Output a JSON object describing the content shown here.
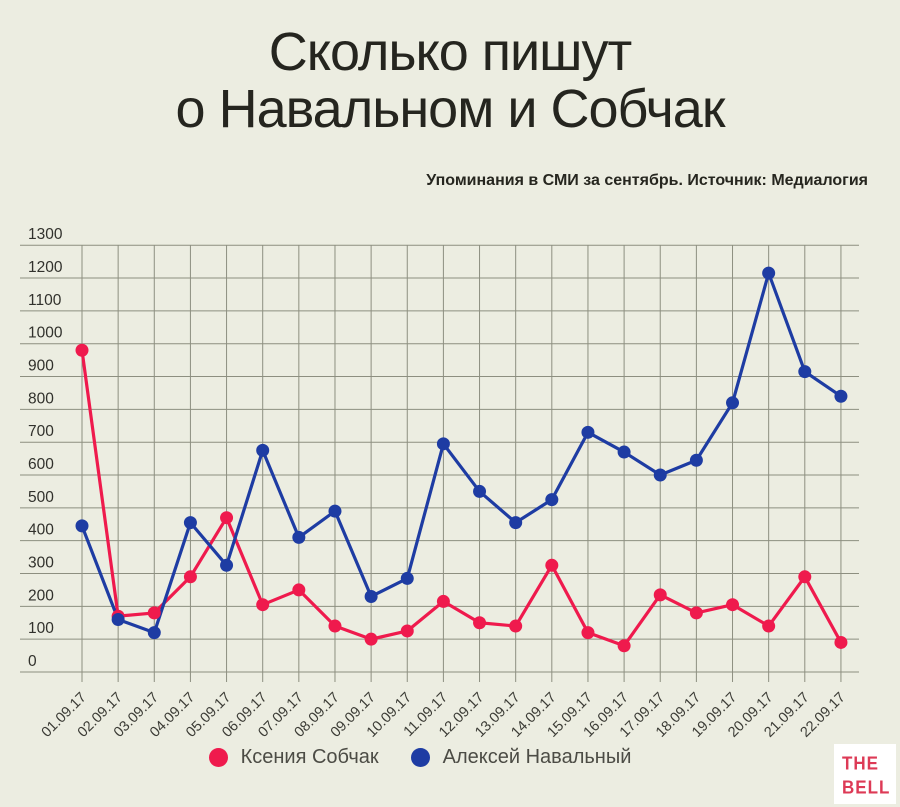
{
  "title": {
    "line1": "Сколько пишут",
    "line2": "о Навальном и Собчак"
  },
  "subtitle": "Упоминания в СМИ за сентябрь. Источник: Медиалогия",
  "logo": {
    "line1": "THE",
    "line2": "BELL",
    "color": "#dd3a56",
    "background": "#ffffff"
  },
  "colors": {
    "background": "#ecede1",
    "gridline": "#8d8f80",
    "y_axis_label": "#31312c",
    "x_axis_label": "#3b3b35",
    "title": "#25251f",
    "legend_text": "#4c4c45"
  },
  "chart_data": {
    "type": "line",
    "title": "Сколько пишут о Навальном и Собчак",
    "subtitle": "Упоминания в СМИ за сентябрь. Источник: Медиалогия",
    "x": [
      "01.09.17",
      "02.09.17",
      "03.09.17",
      "04.09.17",
      "05.09.17",
      "06.09.17",
      "07.09.17",
      "08.09.17",
      "09.09.17",
      "10.09.17",
      "11.09.17",
      "12.09.17",
      "13.09.17",
      "14.09.17",
      "15.09.17",
      "16.09.17",
      "17.09.17",
      "18.09.17",
      "19.09.17",
      "20.09.17",
      "21.09.17",
      "22.09.17"
    ],
    "series": [
      {
        "name": "Ксения Собчак",
        "color": "#ef1a4d",
        "values": [
          980,
          170,
          180,
          290,
          470,
          205,
          250,
          140,
          100,
          125,
          215,
          150,
          140,
          325,
          120,
          80,
          235,
          180,
          205,
          140,
          290,
          90
        ]
      },
      {
        "name": "Алексей Навальный",
        "color": "#1e3ca3",
        "values": [
          445,
          160,
          120,
          455,
          325,
          675,
          410,
          490,
          230,
          285,
          695,
          550,
          455,
          525,
          730,
          670,
          600,
          645,
          820,
          1215,
          915,
          840
        ]
      }
    ],
    "xlabel": "",
    "ylabel": "",
    "ylim": [
      0,
      1300
    ],
    "ytick_step": 100,
    "grid": true,
    "legend_position": "bottom",
    "marker": "circle"
  }
}
